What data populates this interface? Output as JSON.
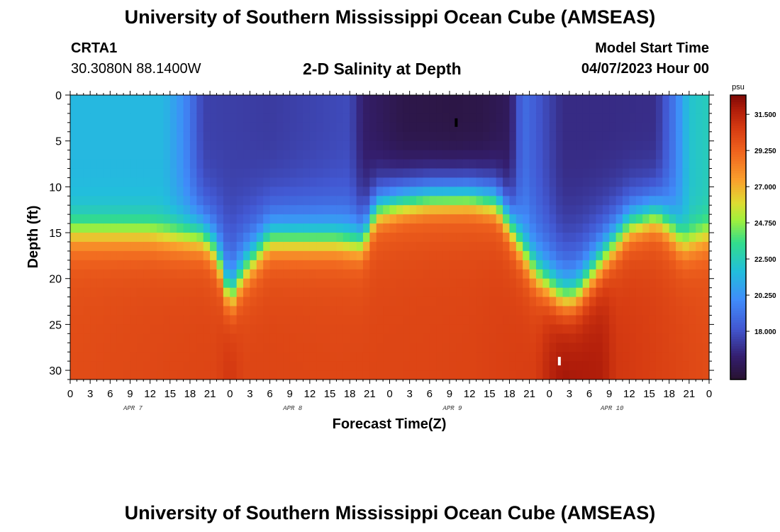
{
  "header": {
    "title": "University of Southern Mississippi Ocean Cube (AMSEAS)",
    "station_name": "CRTA1",
    "station_coords": "30.3080N  88.1400W",
    "plot_title": "2-D Salinity at Depth",
    "start_label": "Model Start Time",
    "start_value": "04/07/2023 Hour 00"
  },
  "footer": {
    "title": "University of Southern Mississippi Ocean Cube (AMSEAS)"
  },
  "chart_data": {
    "type": "heatmap",
    "xlabel": "Forecast Time(Z)",
    "ylabel": "Depth (ft)",
    "x_tick_labels": [
      "0",
      "3",
      "6",
      "9",
      "12",
      "15",
      "18",
      "21",
      "0",
      "3",
      "6",
      "9",
      "12",
      "15",
      "18",
      "21",
      "0",
      "3",
      "6",
      "9",
      "12",
      "15",
      "18",
      "21",
      "0",
      "3",
      "6",
      "9",
      "12",
      "15",
      "18",
      "21",
      "0"
    ],
    "day_labels": [
      {
        "label": "APR 7",
        "hour": 9
      },
      {
        "label": "APR 8",
        "hour": 33
      },
      {
        "label": "APR 9",
        "hour": 57
      },
      {
        "label": "APR 10",
        "hour": 81
      }
    ],
    "xlim_hours": [
      0,
      96
    ],
    "ylim_ft": [
      0,
      31
    ],
    "y_ticks": [
      0,
      5,
      10,
      15,
      20,
      25,
      30
    ],
    "y_reversed": true,
    "colorbar": {
      "unit": "psu",
      "ticks": [
        "31.500",
        "29.250",
        "27.000",
        "24.750",
        "22.500",
        "20.250",
        "18.000"
      ],
      "tick_values": [
        31.5,
        29.25,
        27.0,
        24.75,
        22.5,
        20.25,
        18.0
      ],
      "range": [
        15.0,
        32.7
      ]
    },
    "halocline_depth_ft": {
      "hours": [
        0,
        12,
        20,
        22,
        24,
        26,
        30,
        40,
        44,
        46,
        50,
        54,
        60,
        64,
        66,
        70,
        74,
        76,
        80,
        84,
        88,
        90,
        92,
        94,
        96
      ],
      "depth": [
        14.8,
        14.8,
        15.8,
        17.5,
        22.5,
        19.5,
        16.0,
        16.0,
        16.5,
        13.0,
        12.2,
        11.8,
        11.7,
        12.2,
        14.5,
        19.5,
        22.0,
        21.8,
        18.0,
        14.5,
        13.5,
        14.5,
        16.0,
        15.5,
        15.0
      ]
    },
    "surface_salinity_psu": {
      "hours": [
        0,
        14,
        17,
        20,
        30,
        42,
        44,
        50,
        58,
        62,
        66,
        68,
        74,
        80,
        88,
        91,
        93,
        96
      ],
      "values": [
        21.5,
        21.5,
        20.0,
        17.5,
        17.3,
        17.8,
        16.3,
        15.6,
        15.5,
        15.6,
        16.0,
        19.0,
        16.8,
        16.8,
        16.9,
        19.5,
        22.0,
        22.5
      ]
    },
    "bottom_salinity_psu": {
      "hours": [
        0,
        22,
        24,
        26,
        40,
        60,
        70,
        72,
        74,
        80,
        82,
        96
      ],
      "values": [
        30.0,
        30.3,
        31.0,
        30.3,
        30.2,
        30.3,
        30.6,
        31.6,
        32.3,
        31.8,
        30.8,
        30.0
      ]
    },
    "markers": [
      {
        "hour": 58,
        "depth_ft": 3,
        "color": "#000000"
      },
      {
        "hour": 73.5,
        "depth_ft": 29,
        "color": "#ffffff"
      }
    ]
  }
}
